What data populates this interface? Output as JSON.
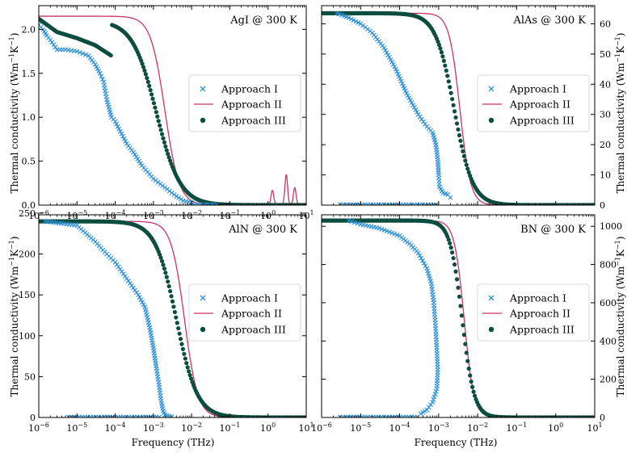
{
  "figure": {
    "xlabel": "Frequency (THz)",
    "ylabel_text": "Thermal conductivity (Wm",
    "ylabel_sup1": "−1",
    "ylabel_mid": "K",
    "ylabel_sup2": "−1",
    "ylabel_end": ")"
  },
  "legend_labels": [
    "Approach I",
    "Approach II",
    "Approach III"
  ],
  "colors": {
    "approach1": "#2b8fd9",
    "approach2": "#cc3366",
    "approach3": "#0b4d3e"
  },
  "x_tick_labels": [
    {
      "base": "10",
      "exp": "−6"
    },
    {
      "base": "10",
      "exp": "−5"
    },
    {
      "base": "10",
      "exp": "−4"
    },
    {
      "base": "10",
      "exp": "−3"
    },
    {
      "base": "10",
      "exp": "−2"
    },
    {
      "base": "10",
      "exp": "−1"
    },
    {
      "base": "10",
      "exp": "0"
    },
    {
      "base": "10",
      "exp": "1"
    }
  ],
  "chart_data": [
    {
      "type": "line",
      "title": "AgI @ 300 K",
      "xlabel": "Frequency (THz)",
      "xscale": "log",
      "xlim": [
        1e-06,
        10
      ],
      "ylabel": "Thermal conductivity (Wm−1K−1)",
      "ylim": [
        0,
        2.27
      ],
      "yticks": [
        0.0,
        0.5,
        1.0,
        1.5,
        2.0
      ],
      "ytick_labels": [
        "0.0",
        "0.5",
        "1.0",
        "1.5",
        "2.0"
      ],
      "yaxis_side": "left",
      "legend": "center-right",
      "show_xtick_labels": true,
      "approach2_plateau": 2.15,
      "approach2_halfx": 0.002,
      "approach2_width": 0.75,
      "approach2_peaks": [
        [
          1.3,
          0.17
        ],
        [
          3.0,
          0.35
        ],
        [
          5.0,
          0.2
        ]
      ],
      "approach3_plateau": 2.1,
      "approach3_halfx": 0.0012,
      "approach3_width": 1.25,
      "approach3_shoulder": [
        [
          1e-06,
          2.12
        ],
        [
          3e-06,
          1.97
        ],
        [
          1e-05,
          1.9
        ],
        [
          3e-05,
          1.82
        ],
        [
          8e-05,
          1.7
        ]
      ],
      "approach1": [
        [
          1e-06,
          2.05
        ],
        [
          1.3e-06,
          2.0
        ],
        [
          1.6e-06,
          1.93
        ],
        [
          2e-06,
          1.88
        ],
        [
          3e-06,
          1.77
        ],
        [
          5e-06,
          1.77
        ],
        [
          1e-05,
          1.75
        ],
        [
          2e-05,
          1.7
        ],
        [
          3e-05,
          1.6
        ],
        [
          4e-05,
          1.5
        ],
        [
          5e-05,
          1.4
        ],
        [
          6e-05,
          1.2
        ],
        [
          8e-05,
          1.0
        ],
        [
          0.0001,
          0.95
        ],
        [
          0.0002,
          0.7
        ],
        [
          0.0003,
          0.6
        ],
        [
          0.0005,
          0.45
        ],
        [
          0.001,
          0.3
        ],
        [
          0.002,
          0.2
        ],
        [
          0.004,
          0.1
        ],
        [
          0.006,
          0.05
        ],
        [
          0.01,
          0.03
        ]
      ],
      "approach1_zero_range": [
        0.01,
        0.05
      ]
    },
    {
      "type": "line",
      "title": "AlAs @ 300 K",
      "xlabel": "Frequency (THz)",
      "xscale": "log",
      "xlim": [
        1e-06,
        10
      ],
      "ylabel": "Thermal conductivity (Wm−1K−1)",
      "ylim": [
        0,
        66
      ],
      "yticks": [
        0,
        10,
        20,
        30,
        40,
        50,
        60
      ],
      "ytick_labels": [
        "0",
        "10",
        "20",
        "30",
        "40",
        "50",
        "60"
      ],
      "yaxis_side": "right",
      "legend": "center-right",
      "show_xtick_labels": false,
      "approach2_plateau": 63.5,
      "approach2_halfx": 0.0035,
      "approach2_width": 0.55,
      "approach3_plateau": 63.5,
      "approach3_halfx": 0.0025,
      "approach3_width": 0.95,
      "approach1": [
        [
          2.5e-06,
          63.5
        ],
        [
          5e-06,
          62
        ],
        [
          1e-05,
          60
        ],
        [
          2e-05,
          57
        ],
        [
          4e-05,
          52
        ],
        [
          8e-05,
          45
        ],
        [
          0.00015,
          37
        ],
        [
          0.0003,
          30
        ],
        [
          0.0005,
          26
        ],
        [
          0.0007,
          24
        ],
        [
          0.00085,
          20
        ],
        [
          0.00095,
          15
        ],
        [
          0.001,
          10
        ],
        [
          0.00105,
          6
        ],
        [
          0.0013,
          4
        ],
        [
          0.0017,
          3.5
        ],
        [
          0.002,
          2.5
        ]
      ],
      "approach1_zero_range": [
        3e-06,
        0.0009
      ]
    },
    {
      "type": "line",
      "title": "AlN @ 300 K",
      "xlabel": "Frequency (THz)",
      "xscale": "log",
      "xlim": [
        1e-06,
        10
      ],
      "ylabel": "Thermal conductivity (Wm−1K−1)",
      "ylim": [
        0,
        248
      ],
      "yticks": [
        0,
        50,
        100,
        150,
        200,
        250
      ],
      "ytick_labels": [
        "0",
        "50",
        "100",
        "150",
        "200",
        "250"
      ],
      "yaxis_side": "left",
      "legend": "center-right",
      "show_xtick_labels": true,
      "approach2_plateau": 240,
      "approach2_halfx": 0.0065,
      "approach2_width": 0.7,
      "approach3_plateau": 240,
      "approach3_halfx": 0.004,
      "approach3_width": 1.1,
      "approach1": [
        [
          1.5e-06,
          240
        ],
        [
          1e-05,
          235
        ],
        [
          3e-05,
          215
        ],
        [
          6e-05,
          200
        ],
        [
          0.0001,
          190
        ],
        [
          0.0002,
          170
        ],
        [
          0.0004,
          150
        ],
        [
          0.0006,
          135
        ],
        [
          0.0008,
          110
        ],
        [
          0.001,
          85
        ],
        [
          0.0012,
          60
        ],
        [
          0.0014,
          40
        ],
        [
          0.0016,
          20
        ],
        [
          0.0018,
          8
        ],
        [
          0.002,
          3
        ],
        [
          0.003,
          1
        ]
      ],
      "approach1_zero_range": [
        6e-06,
        0.0015
      ]
    },
    {
      "type": "line",
      "title": "BN @ 300 K",
      "xlabel": "Frequency (THz)",
      "xscale": "log",
      "xlim": [
        1e-06,
        10
      ],
      "ylabel": "Thermal conductivity (Wm−1K−1)",
      "ylim": [
        0,
        1060
      ],
      "yticks": [
        0,
        200,
        400,
        600,
        800,
        1000
      ],
      "ytick_labels": [
        "0",
        "200",
        "400",
        "600",
        "800",
        "1000"
      ],
      "yaxis_side": "right",
      "legend": "center-right",
      "show_xtick_labels": true,
      "approach2_plateau": 1030,
      "approach2_halfx": 0.0045,
      "approach2_width": 0.5,
      "approach3_plateau": 1030,
      "approach3_halfx": 0.004,
      "approach3_width": 0.62,
      "approach1": [
        [
          5e-06,
          1030
        ],
        [
          1e-05,
          1010
        ],
        [
          3e-05,
          990
        ],
        [
          0.0001,
          950
        ],
        [
          0.0002,
          900
        ],
        [
          0.0003,
          860
        ],
        [
          0.0005,
          780
        ],
        [
          0.00065,
          700
        ],
        [
          0.00075,
          600
        ],
        [
          0.00083,
          480
        ],
        [
          0.0009,
          350
        ],
        [
          0.00095,
          250
        ],
        [
          0.0009,
          150
        ],
        [
          0.0007,
          80
        ],
        [
          0.0005,
          40
        ],
        [
          0.00035,
          20
        ]
      ],
      "approach1_zero_range": [
        3e-06,
        0.0003
      ]
    }
  ]
}
